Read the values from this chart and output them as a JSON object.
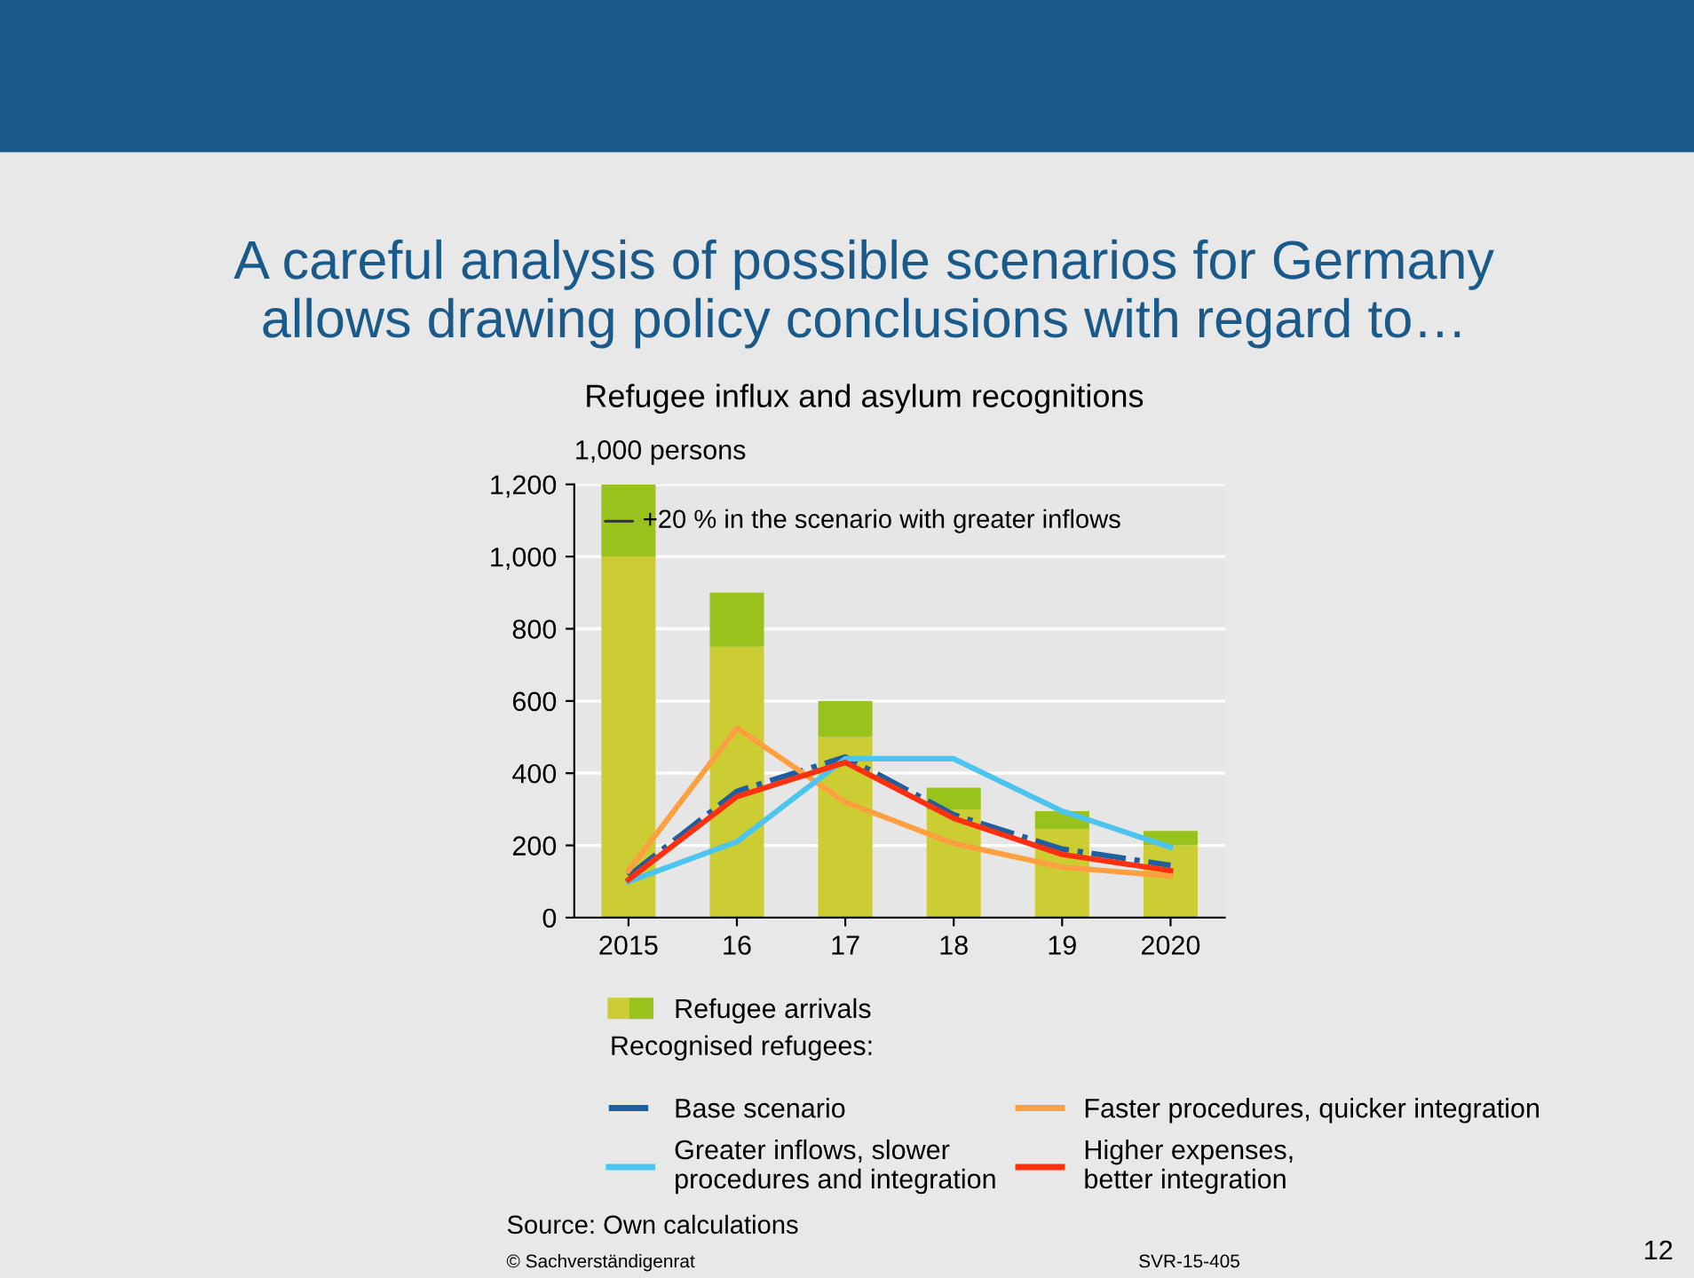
{
  "chart_data": {
    "type": "bar",
    "stacked": true,
    "title": "A careful analysis of possible scenarios for Germany\nallows drawing policy conclusions with regard to…",
    "subtitle": "Refugee influx and asylum recognitions",
    "ylabel": "1,000 persons",
    "categories": [
      "2015",
      "16",
      "17",
      "18",
      "19",
      "2020"
    ],
    "series": [
      {
        "name": "Refugee arrivals",
        "color": "#cccc33",
        "values": [
          1000,
          750,
          500,
          300,
          245,
          200
        ]
      },
      {
        "color": "#99c21c",
        "values": [
          200,
          150,
          100,
          60,
          50,
          40
        ]
      },
      {
        "type": "line",
        "name": "Base scenario",
        "color": "#1f5fa0",
        "line_style": "dashdot",
        "values": [
          115,
          350,
          445,
          285,
          190,
          145
        ]
      },
      {
        "type": "line",
        "name": "Faster procedures, quicker integration",
        "color": "#ffa040",
        "values": [
          130,
          525,
          320,
          205,
          140,
          115
        ]
      },
      {
        "type": "line",
        "name": "Greater inflows, slower\nprocedures and integration",
        "color": "#4cc4f0",
        "values": [
          100,
          210,
          440,
          440,
          295,
          195
        ]
      },
      {
        "type": "line",
        "name": "Higher expenses,\nbetter integration",
        "color": "#ff3010",
        "values": [
          105,
          335,
          430,
          275,
          175,
          130
        ]
      }
    ],
    "ylim": [
      0,
      1200
    ],
    "yticks": [
      0,
      {
        "value": 200,
        "label": "200"
      },
      {
        "value": 400,
        "label": "400"
      },
      {
        "value": 600,
        "label": "600"
      },
      {
        "value": 800,
        "label": "800"
      },
      {
        "value": 1000,
        "label": "1,000"
      },
      {
        "value": 1200,
        "label": "1,200"
      }
    ],
    "grid": "y",
    "legend": "bottom",
    "marker": "none",
    "annotations": [
      "+20 % in the scenario with greater inflows",
      "Recognised refugees:",
      "Source: Own calculations",
      "© Sachverständigenrat",
      "SVR-15-405",
      "12"
    ]
  }
}
